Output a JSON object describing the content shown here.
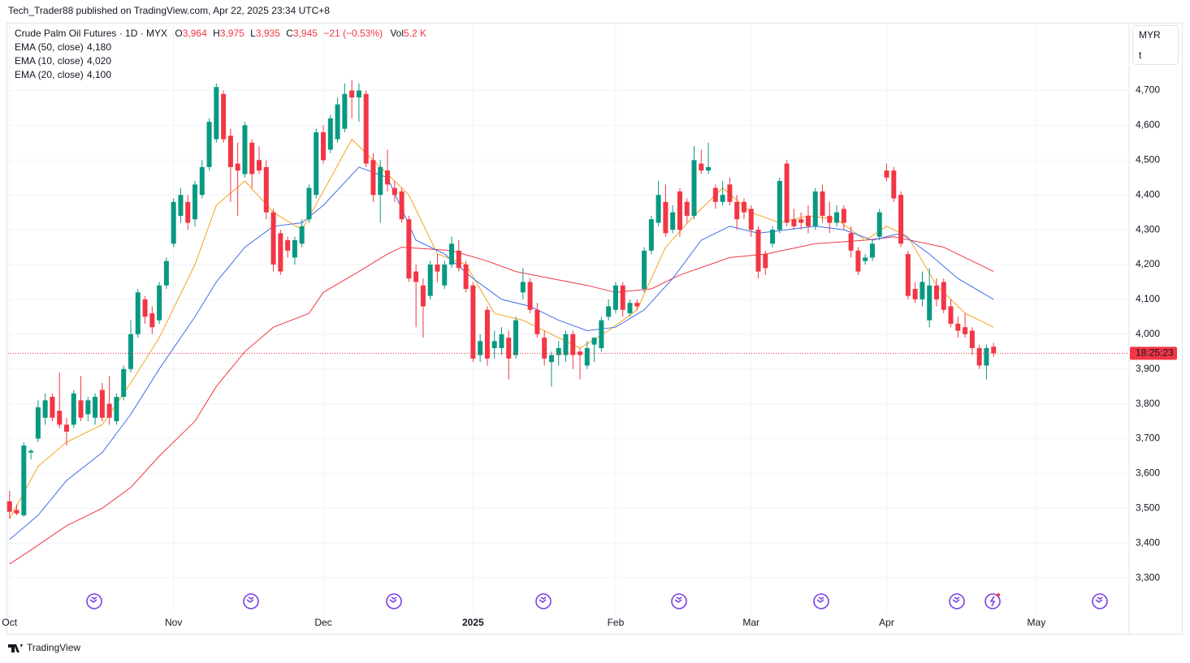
{
  "header": {
    "publisher": "Tech_Trader88 published on TradingView.com, Apr 22, 2025 23:34 UTC+8",
    "symbol": "Crude Palm Oil Futures · 1D · MYX",
    "o_label": "O",
    "o": "3,964",
    "h_label": "H",
    "h": "3,975",
    "l_label": "L",
    "l": "3,935",
    "c_label": "C",
    "c": "3,945",
    "change": "−21 (−0.53%)",
    "vol_label": "Vol",
    "vol": "5.2 K",
    "currency": "MYR",
    "unit": "t",
    "countdown": "18:25:23"
  },
  "footer": {
    "brand": "TradingView"
  },
  "chart_data": {
    "type": "candlestick",
    "up_color": "#089981",
    "down_color": "#f23645",
    "open": [
      3520,
      3495,
      3480,
      3660,
      3700,
      3760,
      3820,
      3780,
      3740,
      3740,
      3810,
      3770,
      3760,
      3840,
      3800,
      3750,
      3820,
      3900,
      4000,
      4100,
      4060,
      4040,
      4140,
      4260,
      4340,
      4380,
      4330,
      4400,
      4480,
      4560,
      4690,
      4570,
      4490,
      4460,
      4550,
      4500,
      4480,
      4350,
      4290,
      4270,
      4220,
      4260,
      4330,
      4400,
      4580,
      4530,
      4560,
      4590,
      4700,
      4680,
      4690,
      4500,
      4400,
      4470,
      4420,
      4410,
      4330,
      4180,
      4140,
      4110,
      4200,
      4140,
      4200,
      4240,
      4200,
      4140,
      3940,
      4070,
      3960,
      3960,
      3990,
      3940,
      4120,
      4150,
      4070,
      3990,
      3920,
      3940,
      3940,
      4000,
      3950,
      3910,
      3970,
      3960,
      4050,
      4070,
      4140,
      4060,
      4090,
      4130,
      4240,
      4320,
      4380,
      4300,
      4410,
      4380,
      4340,
      4490,
      4470,
      4420,
      4380,
      4430,
      4380,
      4380,
      4360,
      4300,
      4230,
      4260,
      4300,
      4490,
      4330,
      4330,
      4340,
      4310,
      4410,
      4340,
      4320,
      4360,
      4290,
      4240,
      4210,
      4220,
      4280,
      4470,
      4470,
      4400,
      4230,
      4130,
      4100,
      4040,
      4140,
      4150,
      4080,
      4030,
      4020,
      4010,
      3960,
      3910,
      3964
    ],
    "high": [
      3550,
      3510,
      3690,
      3670,
      3810,
      3830,
      3830,
      3890,
      3760,
      3840,
      3880,
      3820,
      3830,
      3860,
      3880,
      3830,
      3910,
      4040,
      4130,
      4110,
      4080,
      4150,
      4220,
      4390,
      4420,
      4400,
      4440,
      4500,
      4620,
      4720,
      4700,
      4590,
      4550,
      4610,
      4560,
      4540,
      4500,
      4360,
      4300,
      4280,
      4280,
      4330,
      4430,
      4590,
      4600,
      4630,
      4680,
      4720,
      4730,
      4720,
      4700,
      4520,
      4500,
      4530,
      4440,
      4420,
      4340,
      4200,
      4160,
      4210,
      4230,
      4210,
      4280,
      4270,
      4210,
      4150,
      4000,
      4080,
      4010,
      4020,
      4010,
      4050,
      4190,
      4160,
      4090,
      4010,
      3950,
      3980,
      4010,
      4010,
      3960,
      3980,
      3990,
      4050,
      4100,
      4150,
      4150,
      4100,
      4100,
      4250,
      4340,
      4440,
      4430,
      4370,
      4420,
      4390,
      4540,
      4530,
      4550,
      4430,
      4440,
      4450,
      4400,
      4390,
      4370,
      4310,
      4240,
      4310,
      4450,
      4500,
      4360,
      4350,
      4370,
      4420,
      4430,
      4380,
      4370,
      4370,
      4310,
      4250,
      4230,
      4270,
      4360,
      4490,
      4480,
      4410,
      4240,
      4150,
      4180,
      4190,
      4160,
      4160,
      4100,
      4050,
      4060,
      4020,
      3970,
      3970,
      3975
    ],
    "low": [
      3470,
      3480,
      3475,
      3640,
      3690,
      3740,
      3750,
      3730,
      3680,
      3730,
      3750,
      3750,
      3740,
      3750,
      3740,
      3740,
      3810,
      3890,
      3990,
      4030,
      4000,
      4030,
      4130,
      4250,
      4320,
      4300,
      4310,
      4390,
      4470,
      4550,
      4550,
      4380,
      4340,
      4450,
      4420,
      4460,
      4330,
      4180,
      4170,
      4220,
      4200,
      4250,
      4320,
      4390,
      4490,
      4520,
      4550,
      4580,
      4620,
      4610,
      4480,
      4380,
      4320,
      4410,
      4380,
      4320,
      4150,
      4020,
      3990,
      4100,
      4150,
      4130,
      4190,
      4180,
      4120,
      3920,
      3920,
      3910,
      3930,
      3940,
      3870,
      3930,
      4100,
      4060,
      3990,
      3910,
      3850,
      3910,
      3920,
      3900,
      3870,
      3900,
      3920,
      3950,
      4040,
      4060,
      4050,
      4050,
      4070,
      4120,
      4230,
      4310,
      4280,
      4290,
      4280,
      4320,
      4330,
      4460,
      4460,
      4360,
      4370,
      4370,
      4300,
      4330,
      4280,
      4160,
      4170,
      4250,
      4290,
      4310,
      4300,
      4300,
      4290,
      4300,
      4320,
      4290,
      4310,
      4300,
      4220,
      4170,
      4200,
      4210,
      4270,
      4440,
      4380,
      4250,
      4100,
      4090,
      4080,
      4020,
      4080,
      4060,
      4020,
      3990,
      3990,
      3940,
      3900,
      3870,
      3935
    ],
    "close": [
      3490,
      3485,
      3680,
      3665,
      3790,
      3810,
      3760,
      3740,
      3720,
      3830,
      3760,
      3810,
      3820,
      3760,
      3760,
      3820,
      3900,
      4000,
      4120,
      4050,
      4020,
      4140,
      4210,
      4380,
      4400,
      4320,
      4430,
      4480,
      4610,
      4710,
      4560,
      4480,
      4470,
      4600,
      4460,
      4470,
      4350,
      4200,
      4180,
      4240,
      4270,
      4310,
      4420,
      4580,
      4500,
      4620,
      4660,
      4690,
      4680,
      4700,
      4490,
      4400,
      4480,
      4430,
      4400,
      4330,
      4160,
      4150,
      4080,
      4200,
      4180,
      4200,
      4260,
      4190,
      4130,
      3930,
      3980,
      3930,
      3980,
      4000,
      3930,
      4040,
      4150,
      4070,
      4000,
      3930,
      3940,
      3960,
      4000,
      3940,
      3940,
      3960,
      3990,
      4040,
      4080,
      4140,
      4070,
      4090,
      4080,
      4240,
      4330,
      4400,
      4290,
      4350,
      4300,
      4340,
      4500,
      4470,
      4480,
      4380,
      4400,
      4380,
      4330,
      4350,
      4300,
      4180,
      4190,
      4300,
      4440,
      4320,
      4310,
      4320,
      4310,
      4410,
      4340,
      4320,
      4350,
      4320,
      4240,
      4180,
      4220,
      4260,
      4350,
      4450,
      4390,
      4260,
      4110,
      4100,
      4150,
      4140,
      4100,
      4070,
      4030,
      4010,
      4000,
      3960,
      3910,
      3960,
      3945
    ],
    "series": [
      {
        "name": "EMA (50, close)",
        "label": "4,180",
        "color": "#f23645",
        "x": [
          0,
          3,
          8,
          13,
          17,
          21,
          26,
          29,
          33,
          37,
          42,
          44,
          49,
          53,
          55,
          62,
          67,
          71,
          76,
          81,
          85,
          90,
          94,
          101,
          106,
          113,
          120,
          124,
          131,
          138
        ],
        "values": [
          3340,
          3380,
          3450,
          3500,
          3560,
          3650,
          3750,
          3850,
          3950,
          4020,
          4060,
          4120,
          4180,
          4230,
          4250,
          4240,
          4210,
          4180,
          4160,
          4140,
          4120,
          4130,
          4170,
          4220,
          4230,
          4260,
          4270,
          4280,
          4250,
          4180
        ]
      },
      {
        "name": "EMA (10, close)",
        "label": "4,020",
        "color": "#f7a21b",
        "x": [
          0,
          4,
          8,
          13,
          17,
          21,
          26,
          29,
          33,
          37,
          41,
          44,
          48,
          52,
          56,
          60,
          64,
          68,
          72,
          76,
          80,
          84,
          88,
          92,
          96,
          100,
          104,
          108,
          112,
          116,
          120,
          123,
          126,
          130,
          134,
          138
        ],
        "values": [
          3470,
          3620,
          3690,
          3740,
          3860,
          3990,
          4200,
          4370,
          4440,
          4350,
          4300,
          4410,
          4560,
          4480,
          4400,
          4230,
          4200,
          4060,
          4040,
          4000,
          3960,
          4010,
          4070,
          4250,
          4340,
          4420,
          4350,
          4320,
          4340,
          4330,
          4270,
          4310,
          4280,
          4140,
          4060,
          4020
        ]
      },
      {
        "name": "EMA (20, close)",
        "label": "4,100",
        "color": "#3f6ee8",
        "x": [
          0,
          4,
          8,
          13,
          17,
          21,
          26,
          29,
          33,
          37,
          41,
          44,
          49,
          53,
          57,
          61,
          65,
          69,
          73,
          77,
          81,
          85,
          89,
          93,
          97,
          101,
          105,
          109,
          113,
          117,
          121,
          125,
          129,
          133,
          138
        ],
        "values": [
          3410,
          3480,
          3580,
          3660,
          3770,
          3900,
          4050,
          4150,
          4250,
          4310,
          4320,
          4370,
          4480,
          4450,
          4270,
          4230,
          4160,
          4100,
          4080,
          4040,
          4010,
          4020,
          4070,
          4160,
          4270,
          4310,
          4290,
          4300,
          4310,
          4300,
          4270,
          4290,
          4230,
          4160,
          4100
        ]
      }
    ],
    "xlim": [
      -0.2,
      157
    ],
    "xticks": [
      {
        "value": 0,
        "label": "Oct"
      },
      {
        "value": 23,
        "label": "Nov"
      },
      {
        "value": 44,
        "label": "Dec"
      },
      {
        "value": 65,
        "label": "2025"
      },
      {
        "value": 85,
        "label": "Feb"
      },
      {
        "value": 104,
        "label": "Mar"
      },
      {
        "value": 123,
        "label": "Apr"
      },
      {
        "value": 144,
        "label": "May"
      }
    ],
    "ylim": [
      3200,
      4890
    ],
    "yticks": [
      {
        "value": 3300,
        "label": "3,300"
      },
      {
        "value": 3400,
        "label": "3,400"
      },
      {
        "value": 3500,
        "label": "3,500"
      },
      {
        "value": 3600,
        "label": "3,600"
      },
      {
        "value": 3700,
        "label": "3,700"
      },
      {
        "value": 3800,
        "label": "3,800"
      },
      {
        "value": 3900,
        "label": "3,900"
      },
      {
        "value": 4000,
        "label": "4,000"
      },
      {
        "value": 4100,
        "label": "4,100"
      },
      {
        "value": 4200,
        "label": "4,200"
      },
      {
        "value": 4300,
        "label": "4,300"
      },
      {
        "value": 4400,
        "label": "4,400"
      },
      {
        "value": 4500,
        "label": "4,500"
      },
      {
        "value": 4600,
        "label": "4,600"
      },
      {
        "value": 4700,
        "label": "4,700"
      }
    ],
    "grid": true
  }
}
